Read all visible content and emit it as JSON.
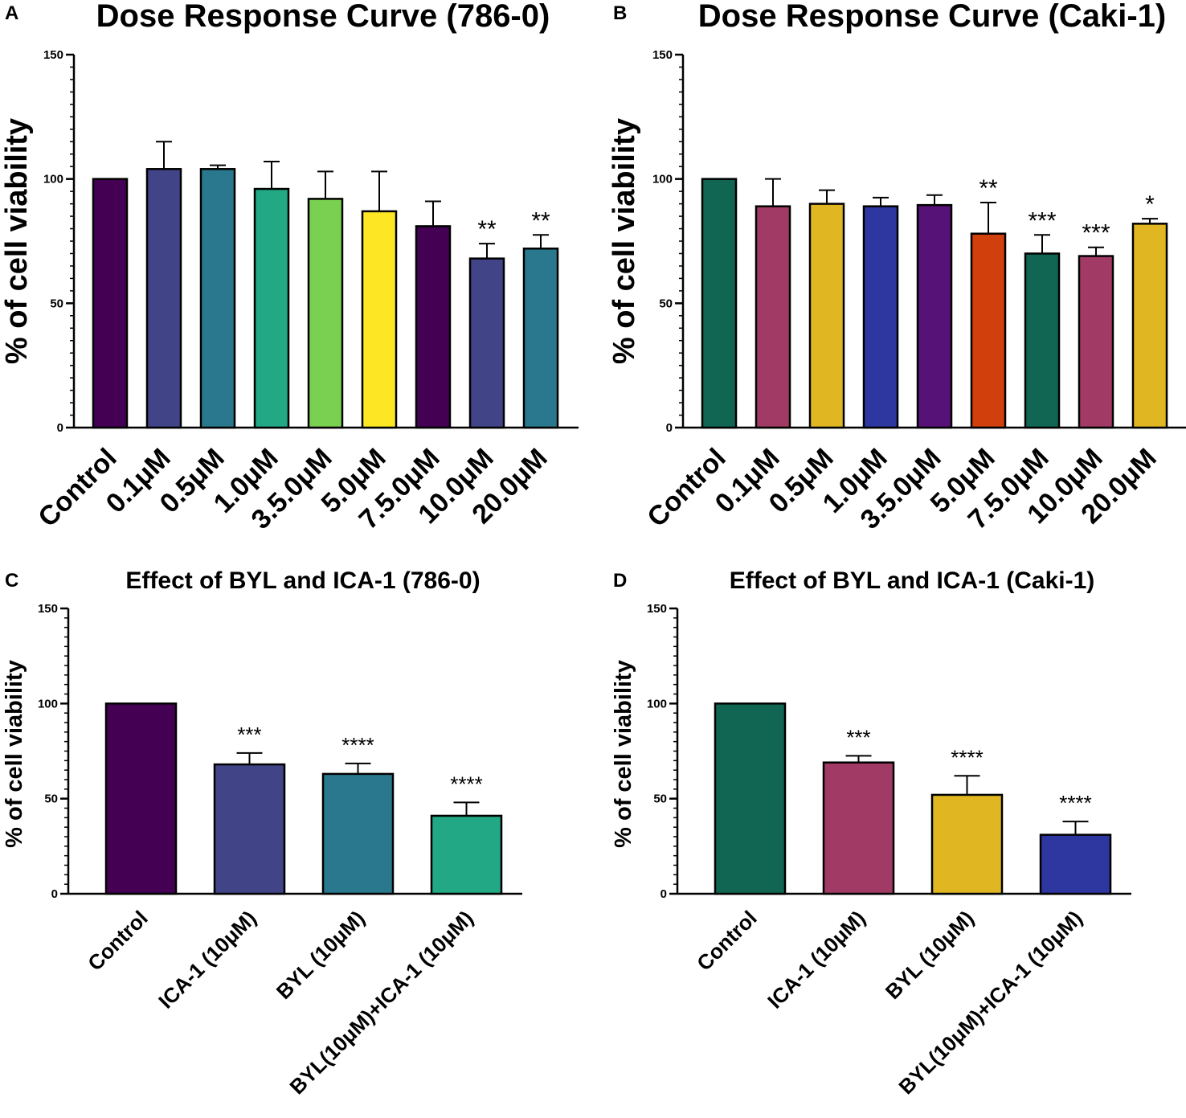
{
  "chart_data": [
    {
      "id": "A",
      "panel_label": "A",
      "type": "bar",
      "title": "Dose Response Curve (786-0)",
      "xlabel": "",
      "ylabel": "% of cell viability",
      "ylim": [
        0,
        150
      ],
      "yticks": [
        0,
        50,
        100,
        150
      ],
      "minor_tick_step": 5,
      "categories": [
        "Control",
        "0.1μM",
        "0.5μM",
        "1.0μM",
        "3.5.0μM",
        "5.0μM",
        "7.5.0μM",
        "10.0μM",
        "20.0μM"
      ],
      "values": [
        100,
        104,
        104,
        96,
        92,
        87,
        81,
        68,
        72
      ],
      "errors": [
        0,
        11,
        1.5,
        11,
        11,
        16,
        10,
        6,
        5.5
      ],
      "significance": [
        "",
        "",
        "",
        "",
        "",
        "",
        "",
        "**",
        "**"
      ],
      "colors": [
        "#440154",
        "#414487",
        "#2a788e",
        "#22a884",
        "#7ad151",
        "#fde725",
        "#440154",
        "#414487",
        "#2a788e"
      ]
    },
    {
      "id": "B",
      "panel_label": "B",
      "type": "bar",
      "title": "Dose Response Curve (Caki-1)",
      "xlabel": "",
      "ylabel": "% of cell viability",
      "ylim": [
        0,
        150
      ],
      "yticks": [
        0,
        50,
        100,
        150
      ],
      "minor_tick_step": 5,
      "categories": [
        "Control",
        "0.1μM",
        "0.5μM",
        "1.0μM",
        "3.5.0μM",
        "5.0μM",
        "7.5.0μM",
        "10.0μM",
        "20.0μM"
      ],
      "values": [
        100,
        89,
        90,
        89,
        89.5,
        78,
        70,
        69,
        82
      ],
      "errors": [
        0,
        11,
        5.5,
        3.5,
        4,
        12.5,
        7.5,
        3.5,
        2
      ],
      "significance": [
        "",
        "",
        "",
        "",
        "",
        "**",
        "***",
        "***",
        "*"
      ],
      "colors": [
        "#106553",
        "#a23a66",
        "#e0b722",
        "#2e36a0",
        "#561276",
        "#d03f0c",
        "#106553",
        "#a23a66",
        "#e0b722"
      ]
    },
    {
      "id": "C",
      "panel_label": "C",
      "type": "bar",
      "title": "Effect of BYL and ICA-1 (786-0)",
      "xlabel": "",
      "ylabel": "% of cell viability",
      "ylim": [
        0,
        150
      ],
      "yticks": [
        0,
        50,
        100,
        150
      ],
      "minor_tick_step": 5,
      "categories": [
        "Control",
        "ICA-1 (10μM)",
        "BYL (10μM)",
        "BYL(10μM)+ICA-1 (10μM)"
      ],
      "values": [
        100,
        68,
        63,
        41
      ],
      "errors": [
        0,
        6,
        5.5,
        7
      ],
      "significance": [
        "",
        "***",
        "****",
        "****"
      ],
      "colors": [
        "#440154",
        "#414487",
        "#2a788e",
        "#22a884"
      ]
    },
    {
      "id": "D",
      "panel_label": "D",
      "type": "bar",
      "title": "Effect of BYL and ICA-1 (Caki-1)",
      "xlabel": "",
      "ylabel": "% of cell viability",
      "ylim": [
        0,
        150
      ],
      "yticks": [
        0,
        50,
        100,
        150
      ],
      "minor_tick_step": 5,
      "categories": [
        "Control",
        "ICA-1 (10μM)",
        "BYL (10μM)",
        "BYL(10μM)+ICA-1 (10μM)"
      ],
      "values": [
        100,
        69,
        52,
        31
      ],
      "errors": [
        0,
        3.5,
        10,
        7
      ],
      "significance": [
        "",
        "***",
        "****",
        "****"
      ],
      "colors": [
        "#106553",
        "#a23a66",
        "#e0b722",
        "#2e36a0"
      ]
    }
  ]
}
